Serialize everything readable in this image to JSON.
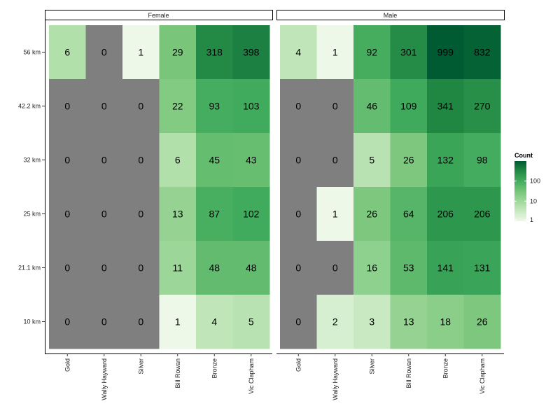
{
  "chart_data": {
    "type": "heatmap",
    "title": "",
    "xlabel": "",
    "ylabel": "",
    "facets": [
      "Female",
      "Male"
    ],
    "x_categories": [
      "Gold",
      "Wally Hayward",
      "Silver",
      "Bill Rowan",
      "Bronze",
      "Vic Clapham"
    ],
    "y_categories": [
      "56 km",
      "42.2 km",
      "32 km",
      "25 km",
      "21.1 km",
      "10 km"
    ],
    "values": {
      "Female": [
        [
          6,
          0,
          1,
          29,
          318,
          398
        ],
        [
          0,
          0,
          0,
          22,
          93,
          103
        ],
        [
          0,
          0,
          0,
          6,
          45,
          43
        ],
        [
          0,
          0,
          0,
          13,
          87,
          102
        ],
        [
          0,
          0,
          0,
          11,
          48,
          48
        ],
        [
          0,
          0,
          0,
          1,
          4,
          5
        ]
      ],
      "Male": [
        [
          4,
          1,
          92,
          301,
          999,
          832
        ],
        [
          0,
          0,
          46,
          109,
          341,
          270
        ],
        [
          0,
          0,
          5,
          26,
          132,
          98
        ],
        [
          0,
          1,
          26,
          64,
          206,
          206
        ],
        [
          0,
          0,
          16,
          53,
          141,
          131
        ],
        [
          0,
          2,
          3,
          13,
          18,
          26
        ]
      ]
    },
    "legend": {
      "title": "Count",
      "scale": "log10",
      "ticks": [
        "1",
        "10",
        "100"
      ],
      "tick_values": [
        1,
        10,
        100
      ],
      "range": [
        1,
        999
      ],
      "placement": "right"
    },
    "zero_color": "#7f7f7f",
    "color_low": "#edf8e9",
    "color_high": "#005a32"
  }
}
